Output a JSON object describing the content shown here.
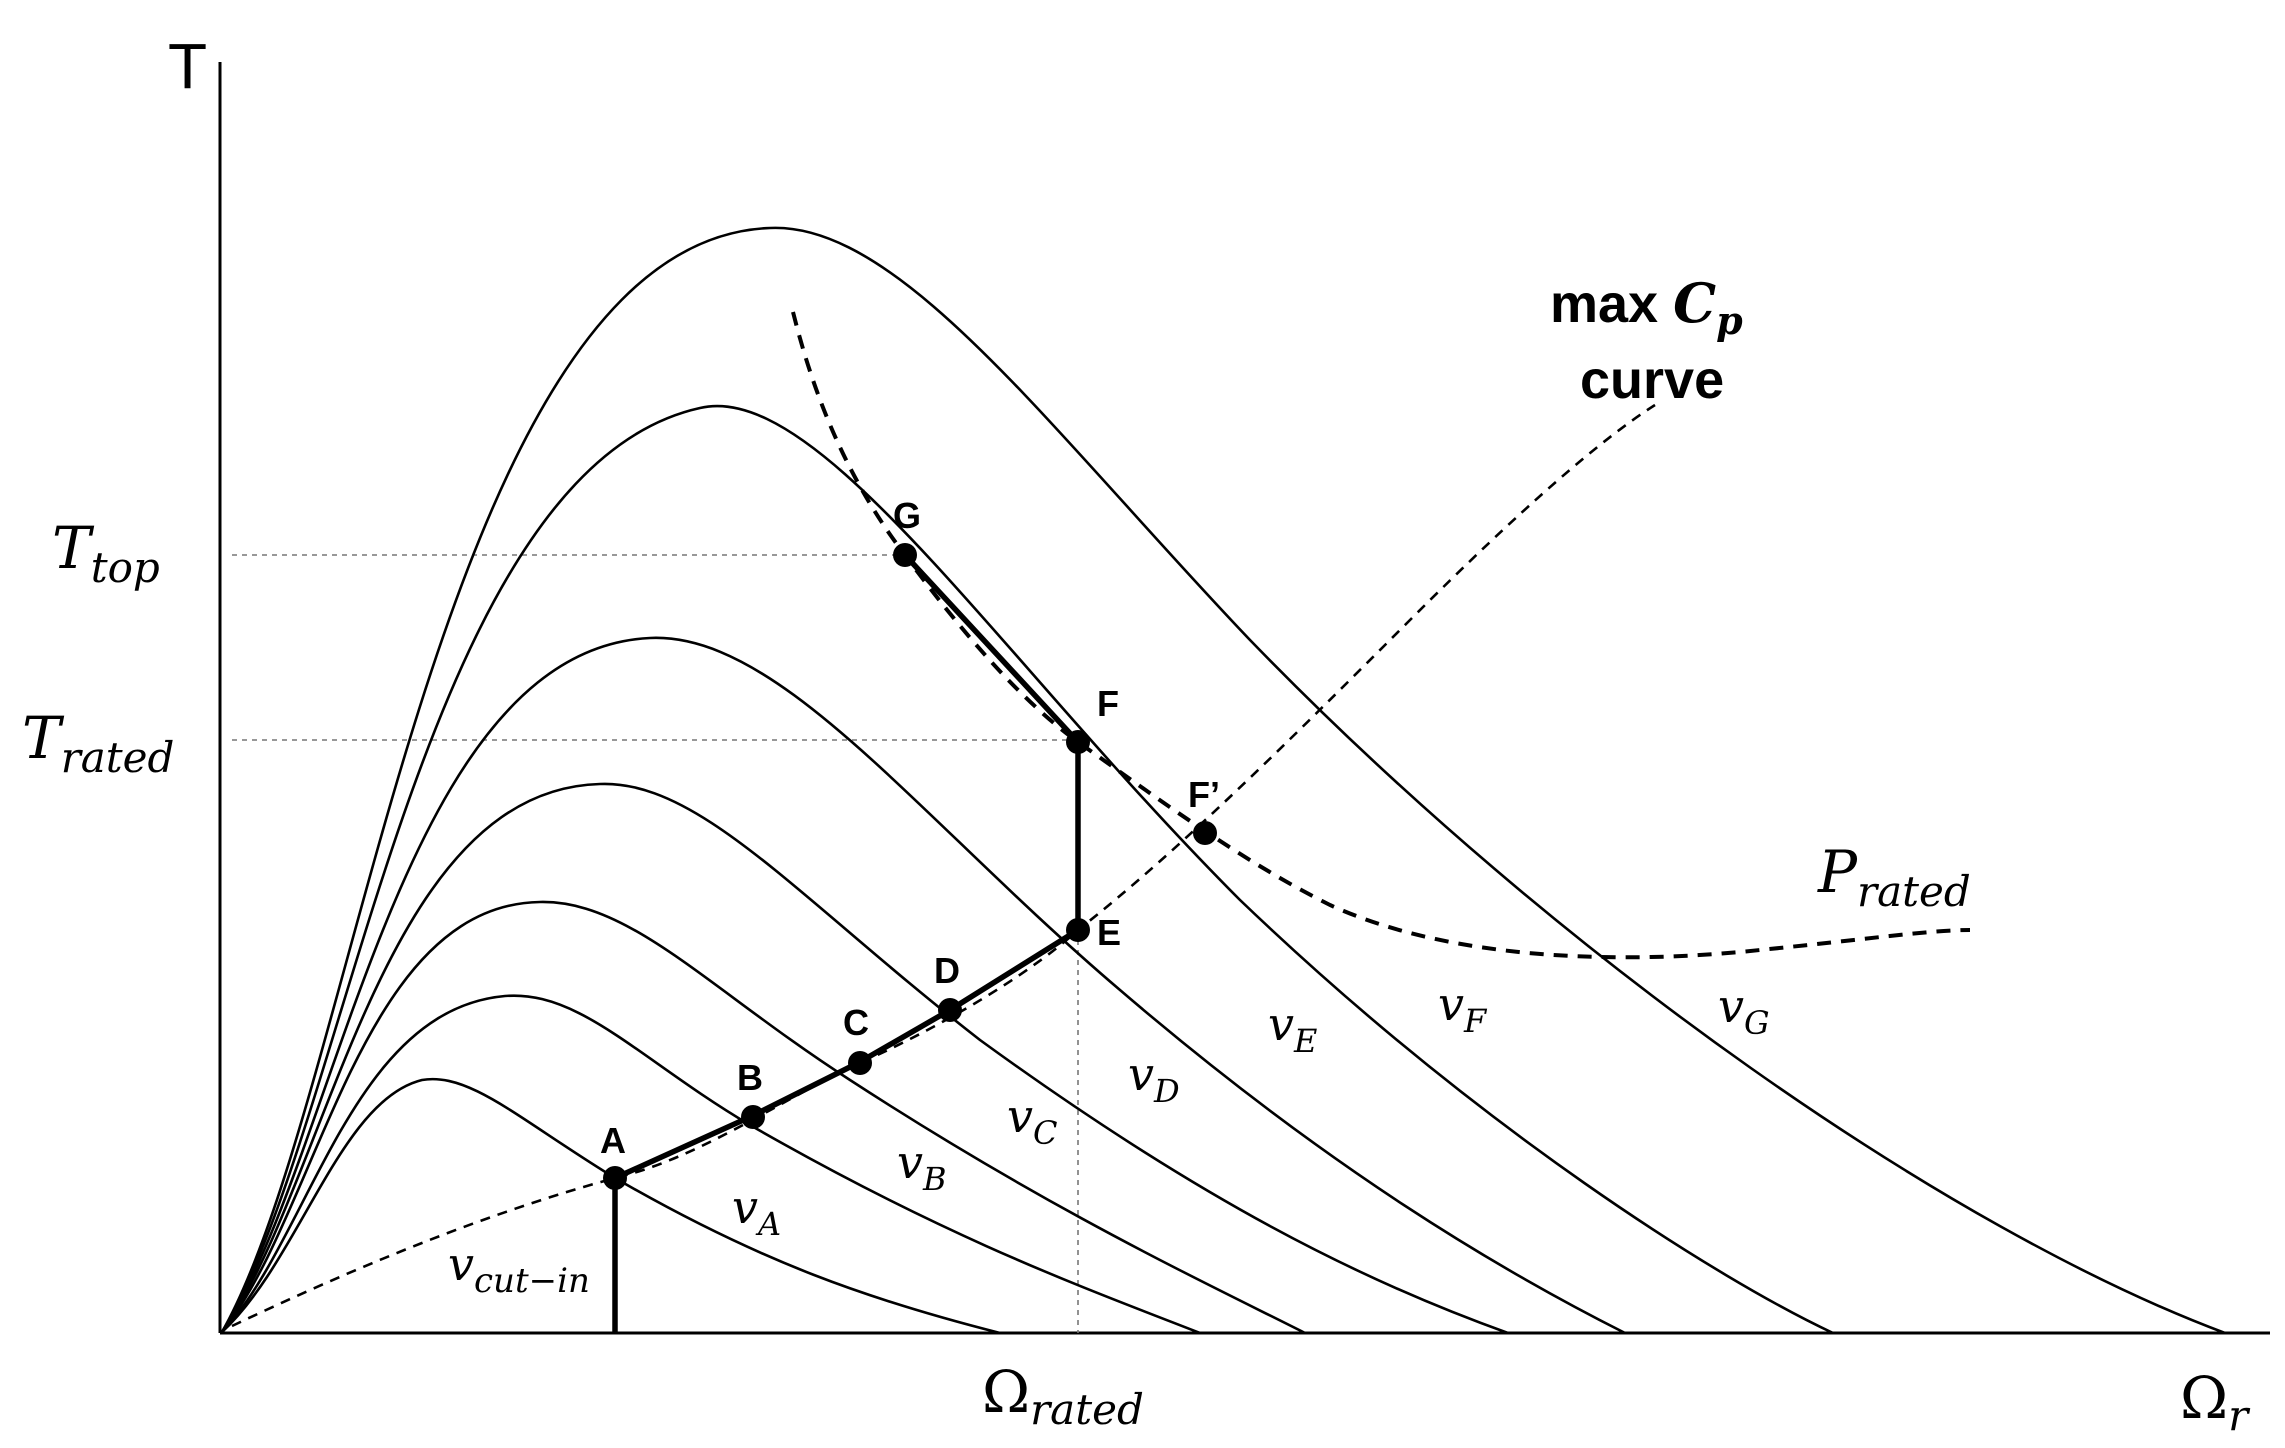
{
  "axes": {
    "y_label": "T",
    "x_label_main": "Ω",
    "x_label_sub": "r"
  },
  "torque_levels": {
    "top_main": "T",
    "top_sub": "top",
    "rated_main": "T",
    "rated_sub": "rated"
  },
  "speed_levels": {
    "rated_main": "Ω",
    "rated_sub": "rated"
  },
  "max_cp_label": {
    "line1_prefix": "max ",
    "line1_var": "C",
    "line1_sub": "p",
    "line2": "curve"
  },
  "p_rated_label": {
    "main": "P",
    "sub": "rated"
  },
  "cut_in_label": {
    "main": "v",
    "sub": "cut−in"
  },
  "wind_speeds": [
    {
      "main": "v",
      "sub": "A"
    },
    {
      "main": "v",
      "sub": "B"
    },
    {
      "main": "v",
      "sub": "C"
    },
    {
      "main": "v",
      "sub": "D"
    },
    {
      "main": "v",
      "sub": "E"
    },
    {
      "main": "v",
      "sub": "F"
    },
    {
      "main": "v",
      "sub": "G"
    }
  ],
  "points": [
    "A",
    "B",
    "C",
    "D",
    "E",
    "F",
    "F’",
    "G"
  ],
  "colors": {
    "line": "#000000",
    "background": "#ffffff"
  }
}
